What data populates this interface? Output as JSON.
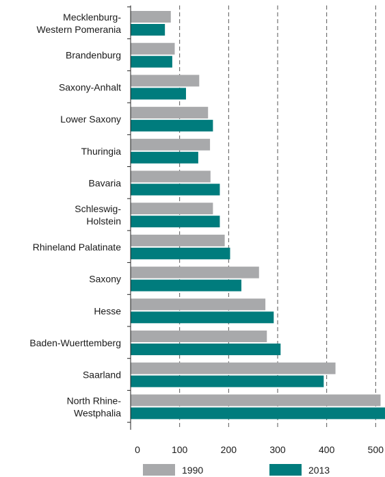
{
  "chart_data": {
    "type": "bar",
    "orientation": "horizontal",
    "categories": [
      [
        "Mecklenburg-",
        "Western Pomerania"
      ],
      [
        "Brandenburg"
      ],
      [
        "Saxony-Anhalt"
      ],
      [
        "Lower Saxony"
      ],
      [
        "Thuringia"
      ],
      [
        "Bavaria"
      ],
      [
        "Schleswig-",
        "Holstein"
      ],
      [
        "Rhineland Palatinate"
      ],
      [
        "Saxony"
      ],
      [
        "Hesse"
      ],
      [
        "Baden-Wuerttemberg"
      ],
      [
        "Saarland"
      ],
      [
        "North Rhine-",
        "Westphalia"
      ]
    ],
    "series": [
      {
        "name": "1990",
        "color": "#a8a9ab",
        "values": [
          82,
          90,
          140,
          158,
          162,
          163,
          168,
          192,
          262,
          275,
          278,
          418,
          510
        ]
      },
      {
        "name": "2013",
        "color": "#007c7d",
        "values": [
          70,
          85,
          113,
          168,
          138,
          182,
          182,
          203,
          226,
          292,
          306,
          394,
          520
        ]
      }
    ],
    "xlim": [
      0,
      520
    ],
    "xticks": [
      0,
      100,
      200,
      300,
      400,
      500
    ],
    "grid": "vertical-dashed",
    "legend": "bottom"
  }
}
